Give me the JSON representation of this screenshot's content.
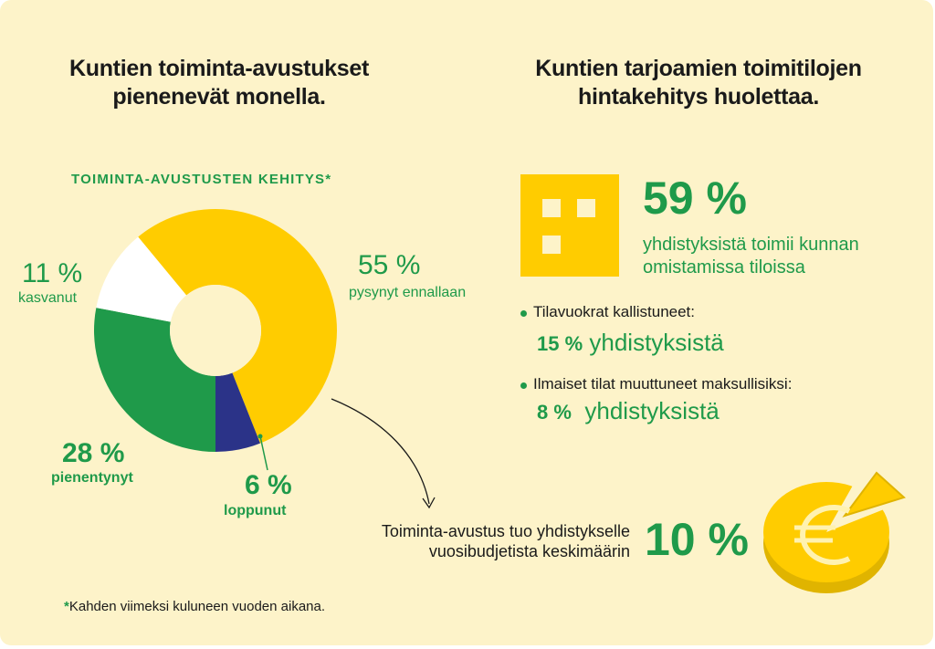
{
  "left_heading": {
    "line1": "Kuntien toiminta-avustukset",
    "line2": "pienenevät monella."
  },
  "right_heading": {
    "line1": "Kuntien tarjoamien toimitilojen",
    "line2": "hintakehitys huolettaa."
  },
  "chart_data": {
    "type": "pie",
    "title": "TOIMINTA-AVUSTUSTEN KEHITYS*",
    "slices": [
      {
        "label": "pysynyt ennallaan",
        "value": 55,
        "value_label": "55 %",
        "color": "#ffcc00"
      },
      {
        "label": "loppunut",
        "value": 6,
        "value_label": "6 %",
        "color": "#2b3388"
      },
      {
        "label": "pienentynyt",
        "value": 28,
        "value_label": "28 %",
        "color": "#1f9a4a"
      },
      {
        "label": "kasvanut",
        "value": 11,
        "value_label": "11 %",
        "color": "#ffffff"
      }
    ]
  },
  "right": {
    "stat_pct": "59 %",
    "stat_line1": "yhdistyksistä toimii kunnan",
    "stat_line2": "omistamissa tiloissa",
    "bullets": [
      {
        "text": "Tilavuokrat kallistuneet:",
        "pct": "15 %",
        "suffix": "yhdistyksistä"
      },
      {
        "text": "Ilmaiset tilat muuttuneet maksullisiksi:",
        "pct": "8 %",
        "suffix": "yhdistyksistä"
      }
    ],
    "bottom_line1": "Toiminta-avustus tuo yhdistykselle",
    "bottom_line2": "vuosibudjetista keskimäärin",
    "bottom_pct": "10 %"
  },
  "icons": [
    "building-icon",
    "euro-coin-icon",
    "arrow-icon"
  ],
  "footnote": {
    "star": "*",
    "text": "Kahden viimeksi kuluneen vuoden aikana."
  }
}
